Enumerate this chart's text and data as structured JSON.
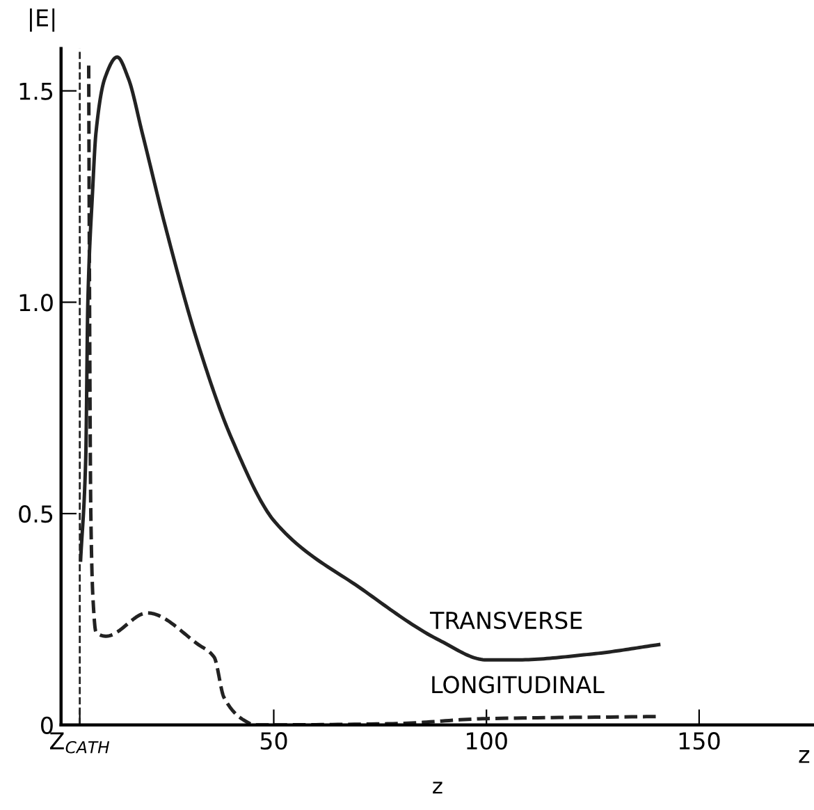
{
  "chart_data": {
    "type": "line",
    "xlabel": "z",
    "ylabel": "|E|",
    "xlim": [
      0,
      177
    ],
    "ylim": [
      0,
      1.6
    ],
    "xticks": [
      {
        "value": 4.4,
        "label": "Z$_{CATH}$"
      },
      50,
      100,
      150
    ],
    "yticks": [
      0,
      0.5,
      {
        "value": 1.0,
        "label": "1.0"
      },
      1.5
    ],
    "grid": false,
    "legend": false,
    "series": [
      {
        "color": "#222222",
        "line_style": "solid",
        "x": [
          4.6,
          5.8,
          6.3,
          7.4,
          8.2,
          10.3,
          13.2,
          15.8,
          19.1,
          24.5,
          32.1,
          40,
          50.3,
          70.9,
          89,
          100,
          107,
          125,
          140.5
        ],
        "values": [
          0.39,
          0.63,
          1.0,
          1.26,
          1.4,
          1.53,
          1.58,
          1.53,
          1.4,
          1.18,
          0.905,
          0.68,
          0.48,
          0.32,
          0.2,
          0.154,
          0.154,
          0.168,
          0.19
        ]
      },
      {
        "color": "#222222",
        "line_style": "dashed",
        "x": [
          6.5,
          6.7,
          7.0,
          7.5,
          8.2,
          10.6,
          20.3,
          32.3,
          36,
          38.3,
          43.2,
          45.6,
          78,
          100,
          141
        ],
        "values": [
          1.56,
          1.0,
          0.5,
          0.3,
          0.22,
          0.21,
          0.265,
          0.19,
          0.16,
          0.065,
          0.01,
          0,
          0.003,
          0.015,
          0.02
        ]
      }
    ],
    "ref_lines": [
      {
        "axis": "x",
        "value": 4.4,
        "line_style": "dashed",
        "color": "#222222"
      }
    ],
    "annotations": [
      "TRANSVERSE",
      "LONGITUDINAL",
      "z"
    ]
  }
}
